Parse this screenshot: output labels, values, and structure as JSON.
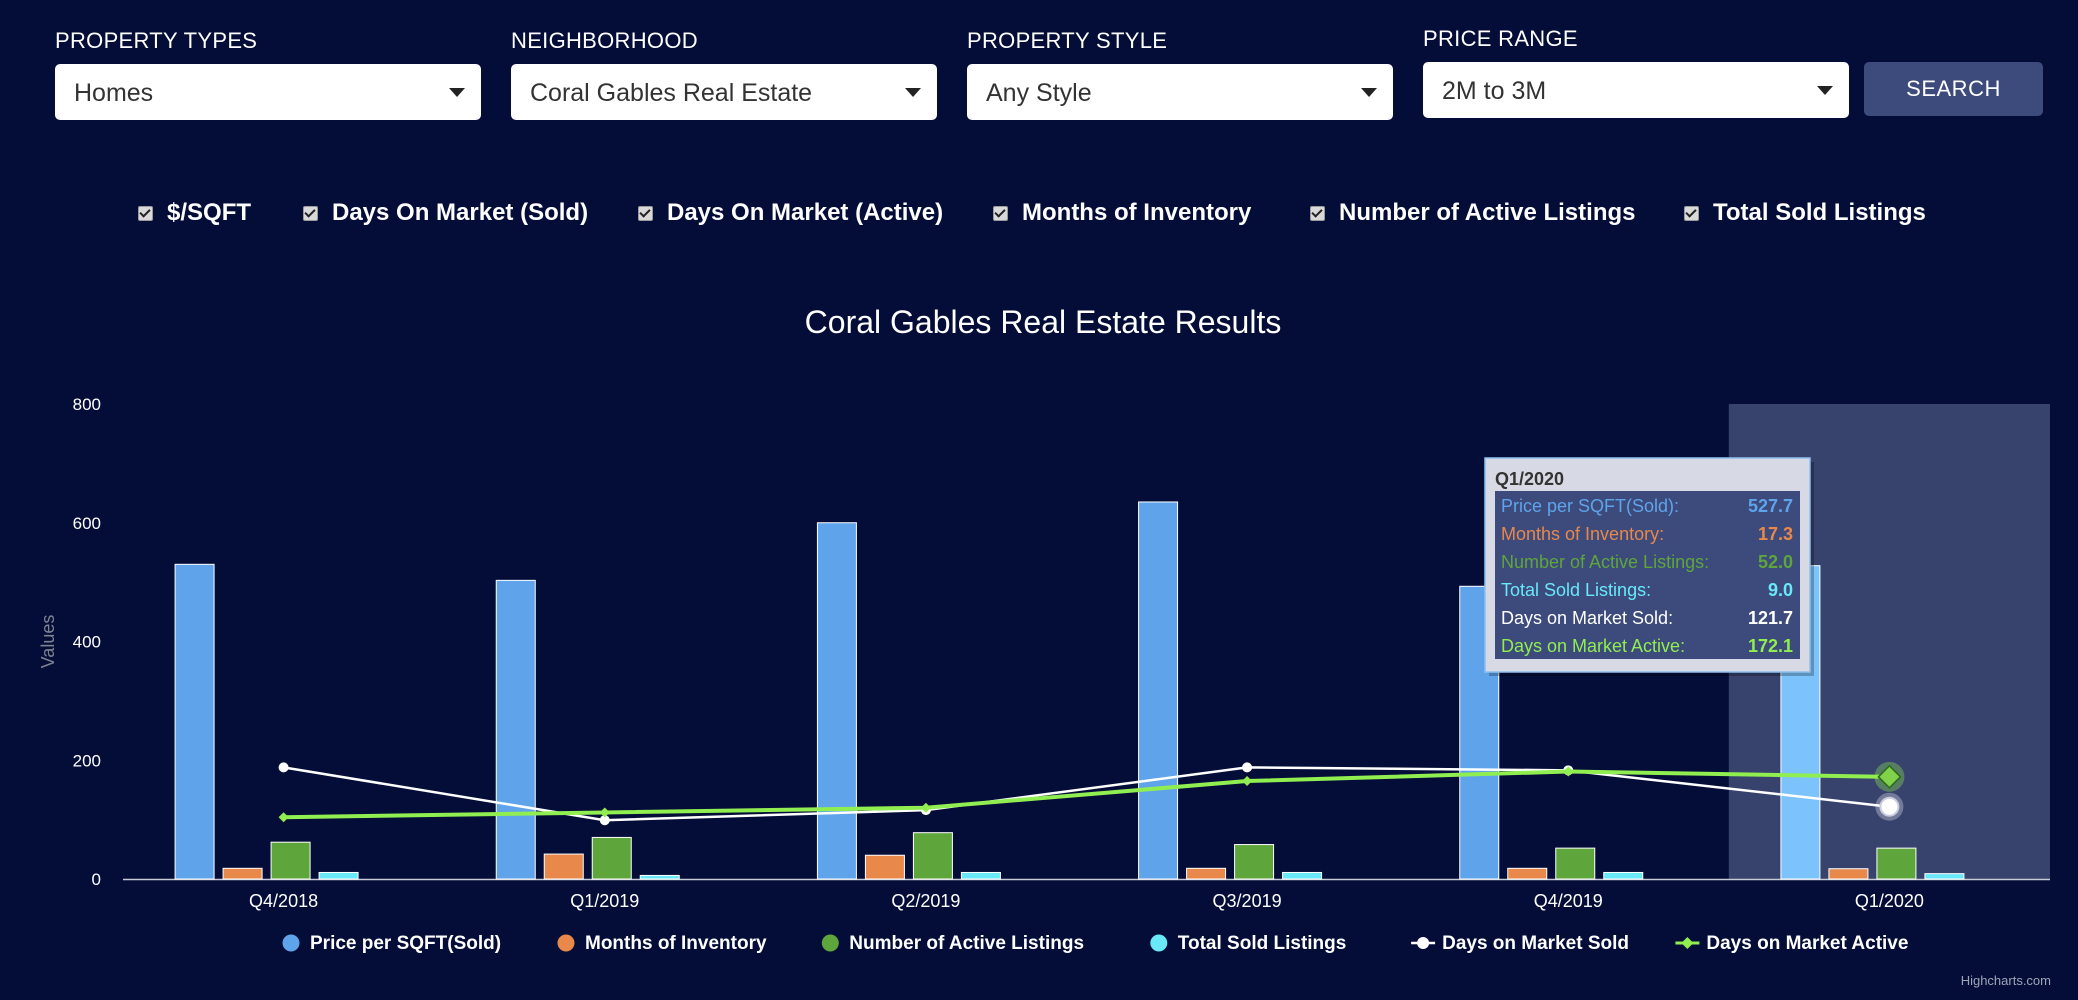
{
  "filters": [
    {
      "label": "PROPERTY TYPES",
      "value": "Homes"
    },
    {
      "label": "NEIGHBORHOOD",
      "value": "Coral Gables Real Estate"
    },
    {
      "label": "PROPERTY STYLE",
      "value": "Any Style"
    },
    {
      "label": "PRICE RANGE",
      "value": "2M to 3M"
    }
  ],
  "search_label": "SEARCH",
  "toggles": [
    {
      "label": "$/SQFT",
      "checked": true
    },
    {
      "label": "Days On Market (Sold)",
      "checked": true
    },
    {
      "label": "Days On Market (Active)",
      "checked": true
    },
    {
      "label": "Months of Inventory",
      "checked": true
    },
    {
      "label": "Number of Active Listings",
      "checked": true
    },
    {
      "label": "Total Sold Listings",
      "checked": true
    }
  ],
  "credit": "Highcharts.com",
  "chart_data": {
    "type": "bar",
    "title": "Coral Gables Real Estate Results",
    "ylabel": "Values",
    "xlabel": "",
    "ylim": [
      0,
      800
    ],
    "yticks": [
      0,
      200,
      400,
      600,
      800
    ],
    "categories": [
      "Q4/2018",
      "Q1/2019",
      "Q2/2019",
      "Q3/2019",
      "Q4/2019",
      "Q1/2020"
    ],
    "highlighted_category": "Q1/2020",
    "grid": false,
    "legend_position": "bottom",
    "series": [
      {
        "name": "Price per SQFT(Sold)",
        "kind": "column",
        "color": "#5fa4ea",
        "values": [
          530,
          503,
          600,
          635,
          493,
          527.7
        ]
      },
      {
        "name": "Months of Inventory",
        "kind": "column",
        "color": "#e8884a",
        "values": [
          18,
          42,
          40,
          18,
          18,
          17.3
        ]
      },
      {
        "name": "Number of Active Listings",
        "kind": "column",
        "color": "#5ea63c",
        "values": [
          62,
          70,
          78,
          58,
          52,
          52.0
        ]
      },
      {
        "name": "Total Sold Listings",
        "kind": "column",
        "color": "#69e8f8",
        "values": [
          11,
          6,
          11,
          11,
          11,
          9.0
        ]
      },
      {
        "name": "Days on Market Sold",
        "kind": "line",
        "color": "#ffffff",
        "values": [
          188,
          99,
          116,
          188,
          183,
          121.7
        ]
      },
      {
        "name": "Days on Market Active",
        "kind": "line",
        "color": "#90ee50",
        "values": [
          104,
          112,
          120,
          165,
          181,
          172.1
        ]
      }
    ],
    "tooltip": {
      "header": "Q1/2020",
      "rows": [
        {
          "label": "Price per SQFT(Sold):",
          "value": "527.7",
          "color": "#5fa4ea"
        },
        {
          "label": "Months of Inventory:",
          "value": "17.3",
          "color": "#e8884a"
        },
        {
          "label": "Number of Active Listings:",
          "value": "52.0",
          "color": "#5ea63c"
        },
        {
          "label": "Total Sold Listings:",
          "value": "9.0",
          "color": "#69e8f8"
        },
        {
          "label": "Days on Market Sold:",
          "value": "121.7",
          "color": "#ffffff"
        },
        {
          "label": "Days on Market Active:",
          "value": "172.1",
          "color": "#90ee50"
        }
      ]
    }
  }
}
